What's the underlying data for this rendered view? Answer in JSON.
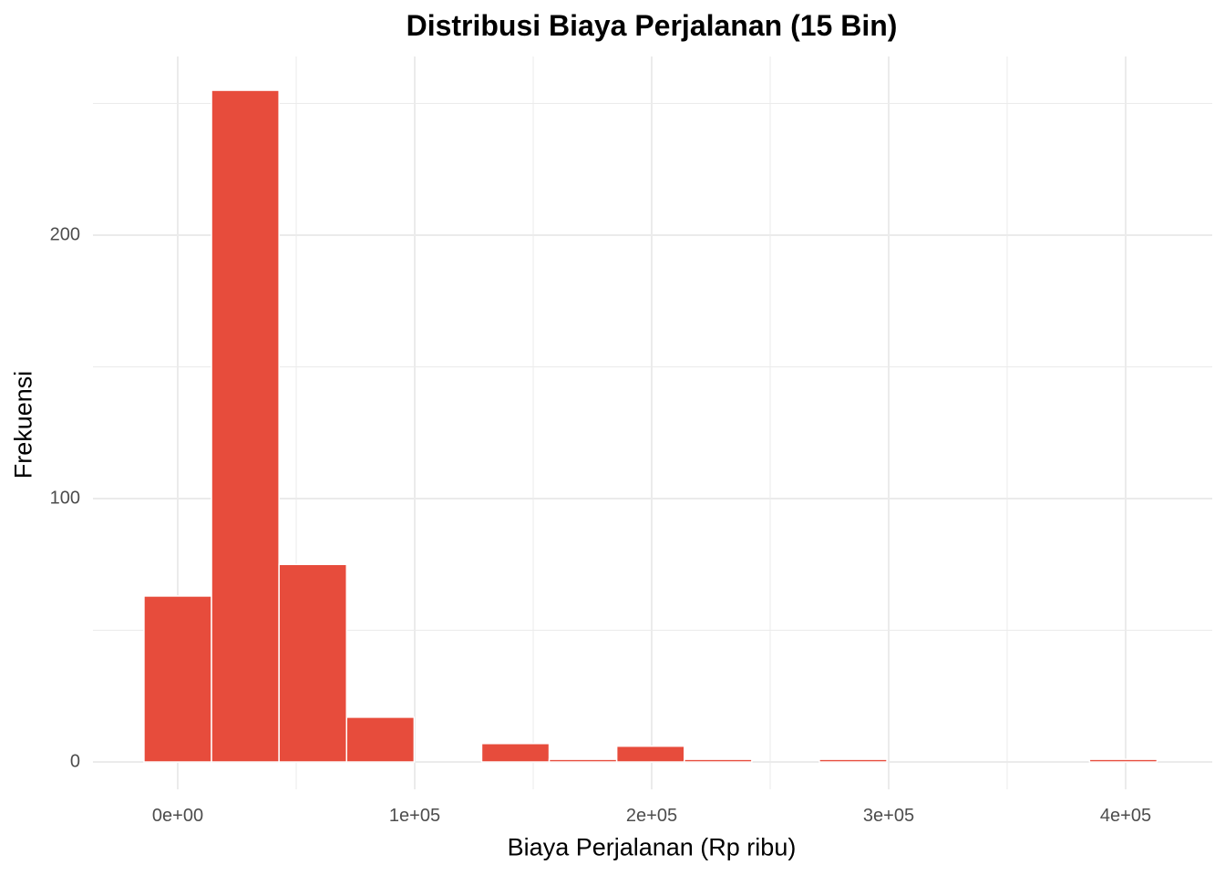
{
  "chart_data": {
    "type": "bar",
    "title": "Distribusi Biaya Perjalanan (15 Bin)",
    "xlabel": "Biaya Perjalanan (Rp ribu)",
    "ylabel": "Frekuensi",
    "bin_width": 28500,
    "bins": [
      {
        "center": 0,
        "count": 63
      },
      {
        "center": 28500,
        "count": 255
      },
      {
        "center": 57000,
        "count": 75
      },
      {
        "center": 85500,
        "count": 17
      },
      {
        "center": 114000,
        "count": 0
      },
      {
        "center": 142500,
        "count": 7
      },
      {
        "center": 171000,
        "count": 1
      },
      {
        "center": 199500,
        "count": 6
      },
      {
        "center": 228000,
        "count": 1
      },
      {
        "center": 256500,
        "count": 0
      },
      {
        "center": 285000,
        "count": 1
      },
      {
        "center": 313500,
        "count": 0
      },
      {
        "center": 342000,
        "count": 0
      },
      {
        "center": 370500,
        "count": 0
      },
      {
        "center": 399000,
        "count": 1
      }
    ],
    "x_ticks": [
      "0e+00",
      "1e+05",
      "2e+05",
      "3e+05",
      "4e+05"
    ],
    "y_ticks": [
      "0",
      "100",
      "200"
    ],
    "xlim": [
      -30000,
      430000
    ],
    "ylim": [
      -10,
      265
    ],
    "grid": true,
    "bar_color": "#E74C3C",
    "legend": null
  },
  "labels": {
    "title": "Distribusi Biaya Perjalanan (15 Bin)",
    "xlabel": "Biaya Perjalanan (Rp ribu)",
    "ylabel": "Frekuensi"
  }
}
